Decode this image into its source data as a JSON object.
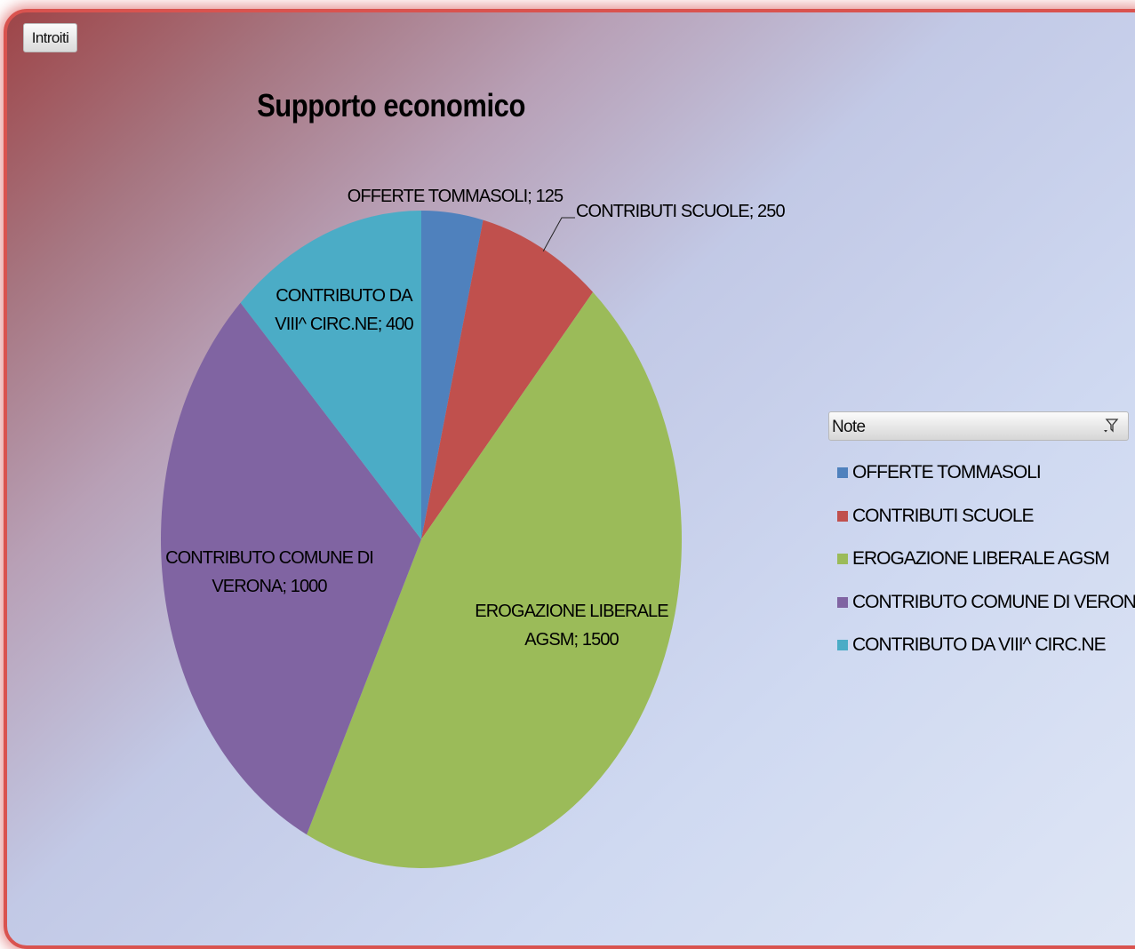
{
  "field_button": "Introiti",
  "legend_header": "Note",
  "chart_data": {
    "type": "pie",
    "title": "Supporto economico",
    "categories": [
      "OFFERTE TOMMASOLI",
      "CONTRIBUTI SCUOLE",
      "EROGAZIONE LIBERALE AGSM",
      "CONTRIBUTO COMUNE DI VERONA",
      "CONTRIBUTO DA VIII^ CIRC.NE"
    ],
    "values": [
      125,
      250,
      1500,
      1000,
      400
    ],
    "colors": [
      "#4f81bd",
      "#c0504d",
      "#9bbb59",
      "#8064a2",
      "#4bacc6"
    ],
    "data_labels": [
      [
        "OFFERTE TOMMASOLI; 125"
      ],
      [
        "CONTRIBUTI SCUOLE; 250"
      ],
      [
        "EROGAZIONE LIBERALE",
        "AGSM; 1500"
      ],
      [
        "CONTRIBUTO COMUNE DI",
        "VERONA; 1000"
      ],
      [
        "CONTRIBUTO DA",
        "VIII^ CIRC.NE; 400"
      ]
    ],
    "legend": "right"
  }
}
